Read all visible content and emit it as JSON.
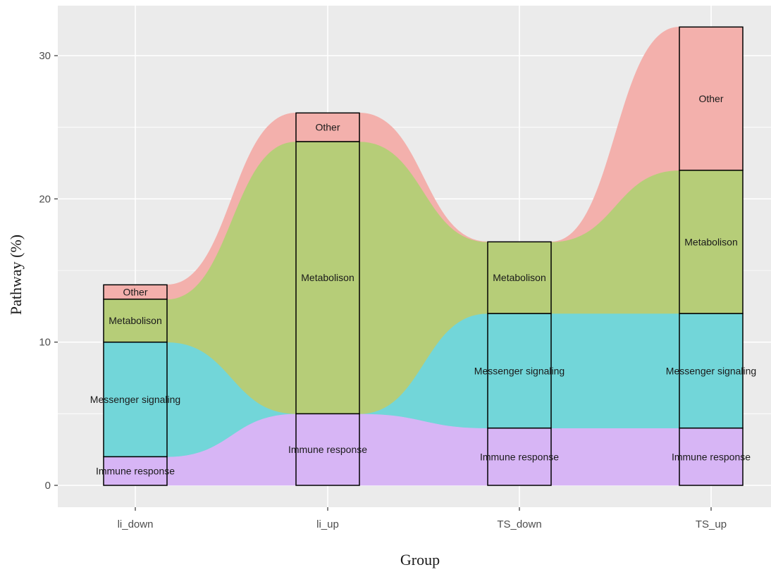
{
  "chart_data": {
    "type": "area",
    "subtype": "alluvial",
    "title": "",
    "xlabel": "Group",
    "ylabel": "Pathway (%)",
    "categories": [
      "li_down",
      "li_up",
      "TS_down",
      "TS_up"
    ],
    "ylim": [
      -1.5,
      32.5
    ],
    "yticks": [
      0,
      10,
      20,
      30
    ],
    "grid": true,
    "stack_order": [
      "Immune response",
      "Messenger signaling",
      "Metabolison",
      "Other"
    ],
    "series": [
      {
        "name": "Immune response",
        "color": "#d7b5f5",
        "values": [
          2,
          5,
          4,
          4
        ]
      },
      {
        "name": "Messenger signaling",
        "color": "#72d6d9",
        "values": [
          8,
          0,
          8,
          8
        ]
      },
      {
        "name": "Metabolison",
        "color": "#b6cd78",
        "values": [
          3,
          19,
          5,
          10
        ]
      },
      {
        "name": "Other",
        "color": "#f3b0ac",
        "values": [
          1,
          2,
          0,
          10
        ]
      }
    ],
    "colors": {
      "panel_background": "#ebebeb",
      "grid": "#ffffff",
      "bar_stroke": "#000000"
    }
  }
}
